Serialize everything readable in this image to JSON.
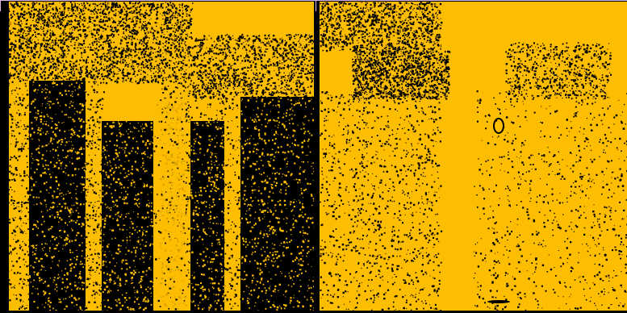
{
  "panels": [
    {
      "id": "left",
      "description_name": "thresholded-image-before",
      "scene": "columns-dense"
    },
    {
      "id": "right",
      "description_name": "thresholded-image-after",
      "scene": "columns-sparse"
    }
  ],
  "colors": {
    "foreground": "#fdbd00",
    "background": "#000000",
    "frame": "#d8b4e8"
  }
}
